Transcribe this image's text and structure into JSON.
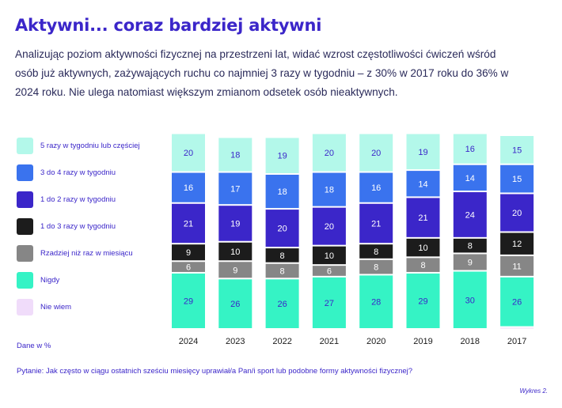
{
  "title": "Aktywni... coraz bardziej aktywni",
  "subtitle": "Analizując poziom aktywności fizycznej na przestrzeni lat, widać wzrost częstotliwości ćwiczeń wśród osób już aktywnych, zażywających ruchu co najmniej 3 razy w tygodniu – z 30% w 2017 roku do 36% w 2024 roku. Nie ulega natomiast większym zmianom odsetek osób nieaktywnych.",
  "footnote": "Dane w %",
  "question": "Pytanie: Jak często w ciągu ostatnich sześciu miesięcy uprawiał/a Pan/i sport lub podobne formy aktywności fizycznej?",
  "chart_label": "Wykres 2.",
  "chart_data": {
    "type": "bar",
    "stacked": true,
    "orientation": "vertical",
    "scale": "percent",
    "legend_position": "left",
    "categories": [
      "2024",
      "2023",
      "2022",
      "2021",
      "2020",
      "2019",
      "2018",
      "2017"
    ],
    "series": [
      {
        "name": "5 razy w tygodniu lub częściej",
        "color": "#b3f8ea",
        "label_color": "#3b26c9",
        "values": [
          20,
          18,
          19,
          20,
          20,
          19,
          16,
          15
        ]
      },
      {
        "name": "3 do 4 razy w tygodniu",
        "color": "#3a73ee",
        "label_color": "#ffffff",
        "values": [
          16,
          17,
          18,
          18,
          16,
          14,
          14,
          15
        ]
      },
      {
        "name": "1 do 2 razy w tygodniu",
        "color": "#3b26c9",
        "label_color": "#ffffff",
        "values": [
          21,
          19,
          20,
          20,
          21,
          21,
          24,
          20
        ]
      },
      {
        "name": "1 do 3 razy w tygodniu",
        "color": "#1c1c1c",
        "label_color": "#ffffff",
        "values": [
          9,
          10,
          8,
          10,
          8,
          10,
          8,
          12
        ]
      },
      {
        "name": "Rzadziej niż raz w miesiącu",
        "color": "#868686",
        "label_color": "#ffffff",
        "values": [
          6,
          9,
          8,
          6,
          8,
          8,
          9,
          11
        ]
      },
      {
        "name": "Nigdy",
        "color": "#35f3c5",
        "label_color": "#3b26c9",
        "values": [
          29,
          26,
          26,
          27,
          28,
          29,
          30,
          26
        ]
      },
      {
        "name": "Nie wiem",
        "color": "#f0dcfa",
        "label_color": "#3b26c9",
        "values": [
          null,
          null,
          null,
          null,
          null,
          null,
          null,
          1
        ]
      }
    ]
  }
}
